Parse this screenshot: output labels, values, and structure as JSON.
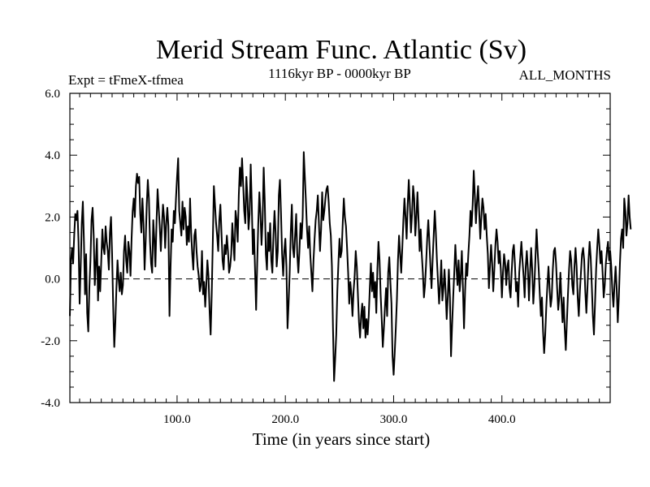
{
  "chart_data": {
    "type": "line",
    "title": "Merid Stream Func. Atlantic (Sv)",
    "subtitle_left": "Expt = tFmeX-tfmea",
    "subtitle_center": "1116kyr BP - 0000kyr BP",
    "subtitle_right": "ALL_MONTHS",
    "xlabel": "Time (in years since start)",
    "ylabel": "",
    "xlim": [
      1,
      500
    ],
    "ylim": [
      -4,
      6
    ],
    "x_ticks": [
      100,
      200,
      300,
      400
    ],
    "x_tick_labels": [
      "100.0",
      "200.0",
      "300.0",
      "400.0"
    ],
    "y_ticks": [
      -4,
      -2,
      0,
      2,
      4,
      6
    ],
    "y_tick_labels": [
      "-4.0",
      "-2.0",
      "0.0",
      "2.0",
      "4.0",
      "6.0"
    ],
    "reference_line": 0,
    "series": [
      {
        "name": "Merid Stream Func. Atlantic",
        "x_start": 1,
        "x_step": 1,
        "values": [
          -1.2,
          0.6,
          1.0,
          0.5,
          1.4,
          2.1,
          1.9,
          2.2,
          1.2,
          -0.8,
          0.4,
          1.8,
          2.5,
          1.2,
          -0.5,
          0.8,
          -1.1,
          -1.7,
          -0.3,
          0.6,
          1.9,
          2.3,
          1.4,
          -0.2,
          0.5,
          1.3,
          -0.7,
          0.4,
          -0.4,
          0.6,
          1.6,
          1.0,
          0.8,
          1.7,
          1.2,
          0.9,
          0.3,
          1.5,
          2.0,
          0.8,
          -0.9,
          -2.2,
          -1.4,
          -0.3,
          0.6,
          0.0,
          -0.4,
          0.2,
          -0.5,
          -0.2,
          0.9,
          1.4,
          0.6,
          0.2,
          1.2,
          0.9,
          0.1,
          1.3,
          2.2,
          2.6,
          2.0,
          3.0,
          3.4,
          3.1,
          3.3,
          2.1,
          1.5,
          2.6,
          1.8,
          0.3,
          1.2,
          2.4,
          3.2,
          2.6,
          1.2,
          0.5,
          0.2,
          1.9,
          1.3,
          0.4,
          1.8,
          2.9,
          2.3,
          1.7,
          0.9,
          1.7,
          2.4,
          2.0,
          1.0,
          1.8,
          2.3,
          1.7,
          -1.2,
          0.4,
          1.6,
          1.2,
          2.2,
          1.8,
          2.6,
          3.3,
          3.9,
          2.2,
          1.8,
          1.4,
          2.5,
          1.6,
          2.3,
          2.0,
          1.1,
          1.7,
          1.2,
          2.6,
          1.5,
          0.8,
          0.3,
          1.4,
          1.6,
          0.9,
          0.4,
          0.1,
          -0.4,
          -0.2,
          0.9,
          -0.5,
          -0.1,
          -0.9,
          -0.2,
          0.6,
          0.1,
          -1.0,
          -1.8,
          -0.5,
          1.2,
          3.0,
          2.4,
          1.8,
          1.4,
          0.9,
          1.9,
          2.4,
          1.5,
          0.6,
          0.3,
          1.1,
          0.8,
          1.4,
          0.9,
          0.2,
          0.4,
          0.8,
          1.8,
          1.2,
          0.6,
          2.2,
          1.9,
          1.2,
          2.7,
          3.6,
          3.0,
          3.9,
          3.1,
          2.2,
          1.8,
          3.3,
          2.6,
          1.6,
          2.1,
          3.7,
          2.4,
          0.8,
          1.6,
          0.3,
          -1.0,
          0.5,
          1.8,
          2.8,
          2.1,
          1.1,
          1.9,
          3.6,
          2.5,
          0.8,
          0.3,
          1.5,
          0.9,
          1.8,
          0.6,
          0.2,
          1.4,
          2.2,
          1.5,
          0.4,
          0.9,
          2.7,
          3.2,
          2.1,
          0.8,
          0.1,
          0.9,
          1.3,
          0.4,
          -1.6,
          -0.8,
          0.2,
          1.5,
          2.4,
          1.0,
          0.7,
          1.4,
          2.1,
          0.8,
          0.2,
          0.9,
          1.8,
          1.3,
          2.0,
          4.1,
          3.3,
          2.5,
          1.6,
          1.0,
          1.7,
          0.8,
          0.2,
          -0.4,
          0.6,
          1.3,
          1.9,
          2.2,
          2.7,
          1.8,
          0.9,
          1.6,
          2.8,
          1.9,
          2.2,
          2.6,
          2.9,
          3.0,
          2.5,
          1.8,
          1.4,
          0.4,
          -1.6,
          -3.3,
          -2.6,
          -1.8,
          -0.4,
          0.5,
          1.3,
          0.7,
          0.9,
          1.8,
          2.6,
          2.0,
          1.7,
          1.0,
          0.2,
          -0.8,
          -0.1,
          -0.5,
          -1.2,
          -0.4,
          0.1,
          0.9,
          0.4,
          -0.5,
          -1.4,
          -1.9,
          -1.2,
          -0.8,
          -1.6,
          -0.9,
          -1.9,
          -1.3,
          -1.8,
          -1.2,
          -0.3,
          0.5,
          -0.4,
          0.2,
          -0.6,
          -0.1,
          -1.1,
          0.3,
          1.2,
          0.6,
          -0.5,
          -1.3,
          -2.2,
          -1.6,
          -0.9,
          -0.3,
          -1.2,
          0.2,
          0.7,
          -0.1,
          -0.8,
          -2.5,
          -3.1,
          -2.4,
          -1.6,
          -0.7,
          0.6,
          1.4,
          0.8,
          0.2,
          1.0,
          1.9,
          2.6,
          2.0,
          1.3,
          2.4,
          3.2,
          2.4,
          1.5,
          2.1,
          3.0,
          2.6,
          1.4,
          2.0,
          2.8,
          1.9,
          0.9,
          1.6,
          0.8,
          0.2,
          -0.6,
          -0.2,
          0.5,
          1.3,
          1.9,
          1.2,
          0.4,
          -0.3,
          0.6,
          1.4,
          2.2,
          1.5,
          0.6,
          -0.1,
          -0.8,
          -0.2,
          0.6,
          -0.7,
          -0.3,
          0.3,
          -0.4,
          -1.3,
          -0.6,
          0.3,
          -0.6,
          -2.5,
          -1.5,
          -0.6,
          0.2,
          1.1,
          0.4,
          -0.2,
          0.6,
          -0.4,
          0.1,
          0.9,
          -0.3,
          -1.6,
          -0.4,
          0.5,
          0.1,
          0.8,
          1.4,
          2.2,
          1.7,
          2.4,
          3.5,
          2.7,
          1.8,
          2.5,
          3.0,
          2.2,
          1.3,
          2.0,
          2.6,
          2.3,
          1.6,
          2.1,
          1.4,
          0.8,
          -0.3,
          0.4,
          1.1,
          0.5,
          -0.4,
          0.3,
          1.1,
          1.6,
          1.2,
          0.5,
          0.9,
          0.3,
          -0.6,
          0.2,
          0.8,
          0.5,
          -0.2,
          0.4,
          0.6,
          -0.3,
          -0.6,
          0.2,
          0.9,
          1.1,
          0.5,
          -0.4,
          -0.1,
          -0.9,
          0.2,
          0.7,
          1.2,
          0.6,
          0.1,
          -0.6,
          0.4,
          0.9,
          0.3,
          -0.7,
          0.2,
          1.0,
          0.3,
          -0.8,
          -0.2,
          0.7,
          1.6,
          0.9,
          0.3,
          -0.5,
          -1.2,
          -0.6,
          -1.7,
          -2.4,
          -1.8,
          -0.9,
          -0.2,
          0.4,
          -0.3,
          -0.9,
          -0.6,
          0.3,
          0.9,
          1.0,
          0.5,
          -0.3,
          -1.0,
          -0.6,
          0.2,
          -0.7,
          -1.4,
          -0.6,
          -1.6,
          -2.3,
          -1.4,
          -0.5,
          0.3,
          0.9,
          0.6,
          -0.2,
          -0.5,
          0.4,
          1.0,
          0.4,
          -0.6,
          -1.2,
          -0.4,
          0.2,
          0.8,
          1.0,
          0.6,
          -0.4,
          -1.1,
          -0.3,
          0.6,
          1.2,
          0.7,
          -0.2,
          -1.2,
          -1.8,
          -0.8,
          0.3,
          1.0,
          1.6,
          1.1,
          0.5,
          0.9,
          0.2,
          -0.6,
          -0.2,
          0.5,
          0.9,
          1.2,
          0.6,
          0.9,
          0.4,
          -0.4,
          -0.9,
          -0.2,
          0.4,
          -0.3,
          -1.4,
          -0.6,
          0.5,
          1.3,
          1.6,
          1.0,
          2.6,
          2.2,
          1.4,
          1.8,
          2.7,
          2.0,
          1.6
        ]
      }
    ]
  }
}
